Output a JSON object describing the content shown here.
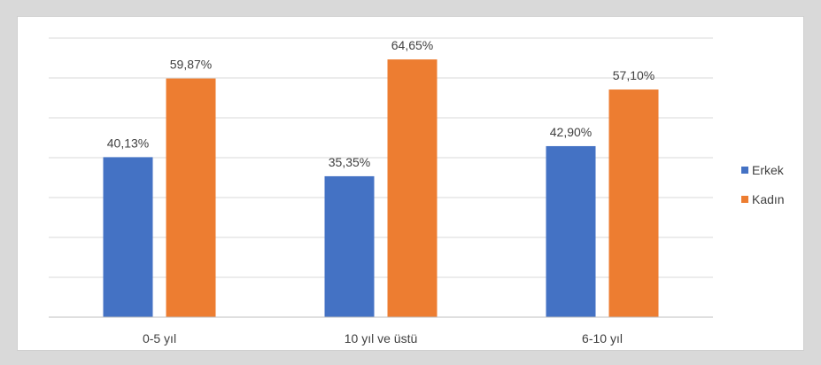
{
  "colors": {
    "background": "#d9d9d9",
    "panel": "#ffffff",
    "gridline": "#d9d9d9",
    "text": "#404040"
  },
  "chart_data": {
    "type": "bar",
    "title": "",
    "xlabel": "",
    "ylabel": "",
    "categories": [
      "0-5 yıl",
      "10 yıl ve üstü",
      "6-10 yıl"
    ],
    "series": [
      {
        "name": "Erkek",
        "color": "#4472c4",
        "values": [
          40.13,
          35.35,
          42.9
        ],
        "labels": [
          "40,13%",
          "35,35%",
          "42,90%"
        ]
      },
      {
        "name": "Kadın",
        "color": "#ed7d31",
        "values": [
          59.87,
          64.65,
          57.1
        ],
        "labels": [
          "59,87%",
          "64,65%",
          "57,10%"
        ]
      }
    ],
    "ylim": [
      0,
      70
    ],
    "y_gridline_step": 10,
    "grid": true,
    "y_axis_labels_visible": false,
    "legend_position": "right"
  }
}
